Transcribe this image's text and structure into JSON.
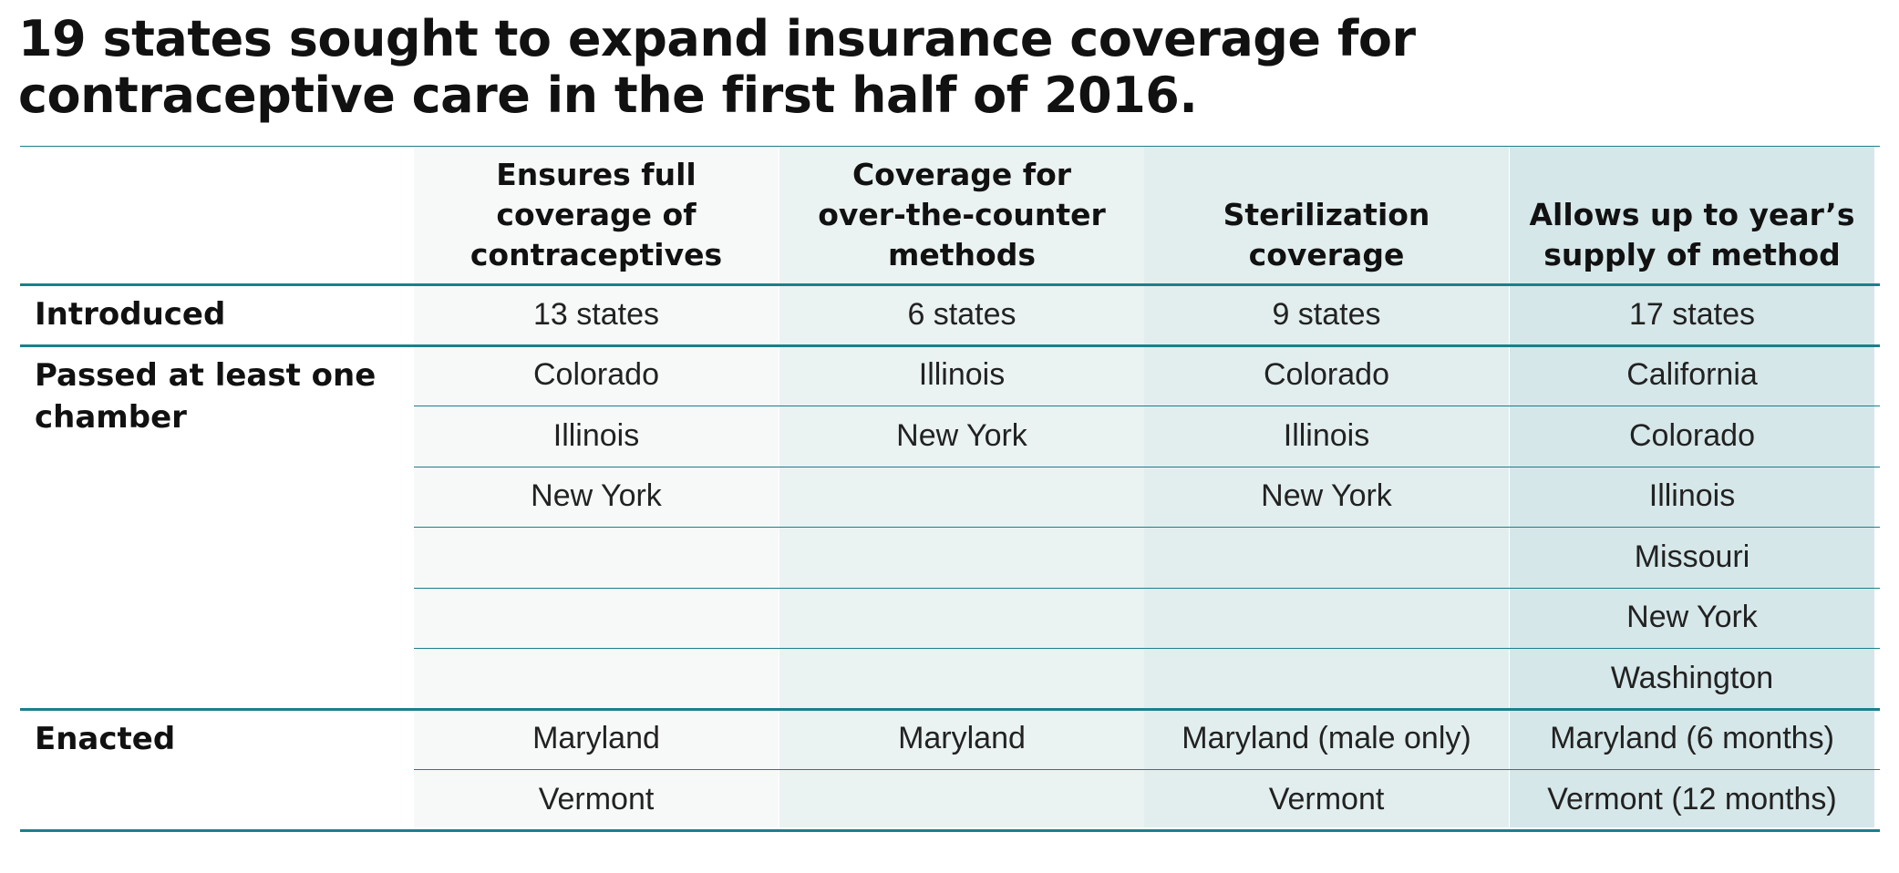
{
  "title": [
    "19 states sought to expand insurance coverage for",
    "contraceptive care in the first half of 2016."
  ],
  "colors": {
    "rule": "#1b7f8c",
    "col_bgs": [
      "#f7f9f9",
      "#eaf2f2",
      "#e2eeee",
      "#d6e7e9"
    ]
  },
  "chart_data": {
    "type": "table",
    "columns": [
      [
        "Ensures full",
        "coverage of",
        "contraceptives"
      ],
      [
        "Coverage for",
        "over-the-counter",
        "methods"
      ],
      [
        "Sterilization",
        "coverage"
      ],
      [
        "Allows up to year’s",
        "supply of method"
      ]
    ],
    "row_groups": [
      {
        "label": [
          "Introduced"
        ],
        "rows": [
          [
            "13 states",
            "6 states",
            "9 states",
            "17 states"
          ]
        ]
      },
      {
        "label": [
          "Passed at least one",
          "chamber"
        ],
        "rows": [
          [
            "Colorado",
            "Illinois",
            "Colorado",
            "California"
          ],
          [
            "Illinois",
            "New York",
            "Illinois",
            "Colorado"
          ],
          [
            "New York",
            "",
            "New York",
            "Illinois"
          ],
          [
            "",
            "",
            "",
            "Missouri"
          ],
          [
            "",
            "",
            "",
            "New York"
          ],
          [
            "",
            "",
            "",
            "Washington"
          ]
        ]
      },
      {
        "label": [
          "Enacted"
        ],
        "rows": [
          [
            "Maryland",
            "Maryland",
            "Maryland (male only)",
            "Maryland (6 months)"
          ],
          [
            "Vermont",
            "",
            "Vermont",
            "Vermont (12 months)"
          ]
        ]
      }
    ]
  }
}
